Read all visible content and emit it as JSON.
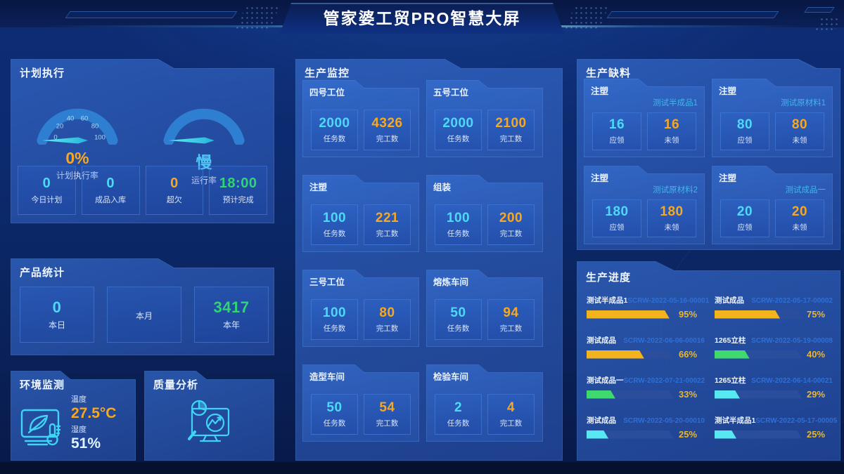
{
  "header": {
    "title": "管家婆工贸PRO智慧大屏"
  },
  "plan": {
    "title": "计划执行",
    "gauges": [
      {
        "value": "0%",
        "label": "计划执行率",
        "ticks": [
          "0",
          "20",
          "40",
          "60",
          "80",
          "100"
        ]
      },
      {
        "value": "慢",
        "label": "运行率"
      }
    ],
    "stats": [
      {
        "value": "0",
        "label": "今日计划"
      },
      {
        "value": "0",
        "label": "成品入库"
      },
      {
        "value": "0",
        "label": "超欠"
      },
      {
        "value": "18:00",
        "label": "预计完成"
      }
    ]
  },
  "product": {
    "title": "产品统计",
    "stats": [
      {
        "value": "0",
        "label": "本日"
      },
      {
        "value": "",
        "label": "本月"
      },
      {
        "value": "3417",
        "label": "本年"
      }
    ]
  },
  "environment": {
    "title": "环境监测",
    "temp_label": "温度",
    "temp": "27.5°C",
    "humidity_label": "湿度",
    "humidity": "51%"
  },
  "quality": {
    "title": "质量分析"
  },
  "monitor": {
    "title": "生产监控",
    "task_label": "任务数",
    "done_label": "完工数",
    "cards": [
      {
        "name": "四号工位",
        "task": "2000",
        "done": "4326"
      },
      {
        "name": "五号工位",
        "task": "2000",
        "done": "2100"
      },
      {
        "name": "注塑",
        "task": "100",
        "done": "221"
      },
      {
        "name": "组装",
        "task": "100",
        "done": "200"
      },
      {
        "name": "三号工位",
        "task": "100",
        "done": "80"
      },
      {
        "name": "熔炼车间",
        "task": "50",
        "done": "94"
      },
      {
        "name": "造型车间",
        "task": "50",
        "done": "54"
      },
      {
        "name": "检验车间",
        "task": "2",
        "done": "4"
      }
    ]
  },
  "shortage": {
    "title": "生产缺料",
    "need_label": "应领",
    "pending_label": "未领",
    "cards": [
      {
        "process": "注塑",
        "material": "测试半成品1",
        "need": "16",
        "pending": "16"
      },
      {
        "process": "注塑",
        "material": "测试原材料1",
        "need": "80",
        "pending": "80"
      },
      {
        "process": "注塑",
        "material": "测试原材料2",
        "need": "180",
        "pending": "180"
      },
      {
        "process": "注塑",
        "material": "测试成品一",
        "need": "20",
        "pending": "20"
      }
    ]
  },
  "progress": {
    "title": "生产进度",
    "rows": [
      {
        "name": "测试半成品1",
        "order": "SCRW-2022-05-16-00001",
        "percent": 95,
        "percent_text": "95%",
        "color": "#f2b31d"
      },
      {
        "name": "测试成品",
        "order": "SCRW-2022-05-17-00002",
        "percent": 75,
        "percent_text": "75%",
        "color": "#f2b31d"
      },
      {
        "name": "测试成品",
        "order": "SCRW-2022-06-06-00016",
        "percent": 66,
        "percent_text": "66%",
        "color": "#f2b31d"
      },
      {
        "name": "1265立柱",
        "order": "SCRW-2022-05-19-00008",
        "percent": 40,
        "percent_text": "40%",
        "color": "#3fd96f"
      },
      {
        "name": "测试成品一",
        "order": "SCRW-2022-07-21-00022",
        "percent": 33,
        "percent_text": "33%",
        "color": "#3fd96f"
      },
      {
        "name": "1265立柱",
        "order": "SCRW-2022-06-14-00021",
        "percent": 29,
        "percent_text": "29%",
        "color": "#57e8f2"
      },
      {
        "name": "测试成品",
        "order": "SCRW-2022-05-20-00010",
        "percent": 25,
        "percent_text": "25%",
        "color": "#57e8f2"
      },
      {
        "name": "测试半成品1",
        "order": "SCRW-2022-05-17-00005",
        "percent": 25,
        "percent_text": "25%",
        "color": "#57e8f2"
      }
    ]
  },
  "colors": {
    "accent_cyan": "#4ed9f8",
    "accent_orange": "#f6a822",
    "accent_green": "#2fd573",
    "order_blue": "#2e6fd6",
    "bar_gold": "#f2b31d",
    "bar_green": "#3fd96f",
    "bar_cyan": "#57e8f2",
    "gauge_arc": "#2e7fd2",
    "panel_border": "#3c6fd0"
  }
}
